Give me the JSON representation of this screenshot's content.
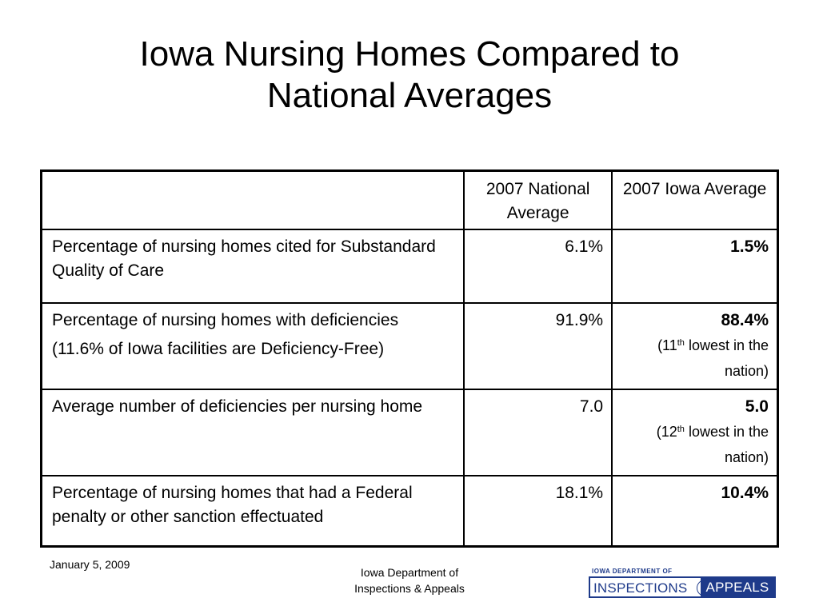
{
  "slide": {
    "title_lines": [
      "Iowa Nursing Homes Compared to",
      "National Averages"
    ]
  },
  "table": {
    "headers": [
      "",
      "2007 National Average",
      "2007 Iowa Average"
    ],
    "rows": [
      {
        "label": "Percentage of nursing homes cited for Substandard Quality of Care",
        "note": "",
        "national": "6.1%",
        "iowa": "1.5%",
        "rank_pre": "",
        "rank_sup": "",
        "rank_post": ""
      },
      {
        "label": "Percentage of nursing homes with deficiencies",
        "note": "(11.6% of Iowa facilities are Deficiency-Free)",
        "national": "91.9%",
        "iowa": "88.4%",
        "rank_pre": "(11",
        "rank_sup": "th",
        "rank_post": " lowest in the nation)"
      },
      {
        "label": "Average number of deficiencies per nursing home",
        "note": "",
        "national": "7.0",
        "iowa": "5.0",
        "rank_pre": "(12",
        "rank_sup": "th",
        "rank_post": " lowest in the nation)"
      },
      {
        "label": "Percentage of nursing homes that had a Federal penalty or other sanction effectuated",
        "note": "",
        "national": "18.1%",
        "iowa": "10.4%",
        "rank_pre": "",
        "rank_sup": "",
        "rank_post": ""
      }
    ]
  },
  "footer": {
    "date": "January 5, 2009",
    "department_lines": [
      "Iowa Department of",
      "Inspections & Appeals"
    ],
    "logo": {
      "top_text": "IOWA DEPARTMENT OF",
      "left_text": "INSPECTIONS",
      "amp": "&",
      "right_text": "APPEALS",
      "color": "#1e3a8a"
    }
  }
}
